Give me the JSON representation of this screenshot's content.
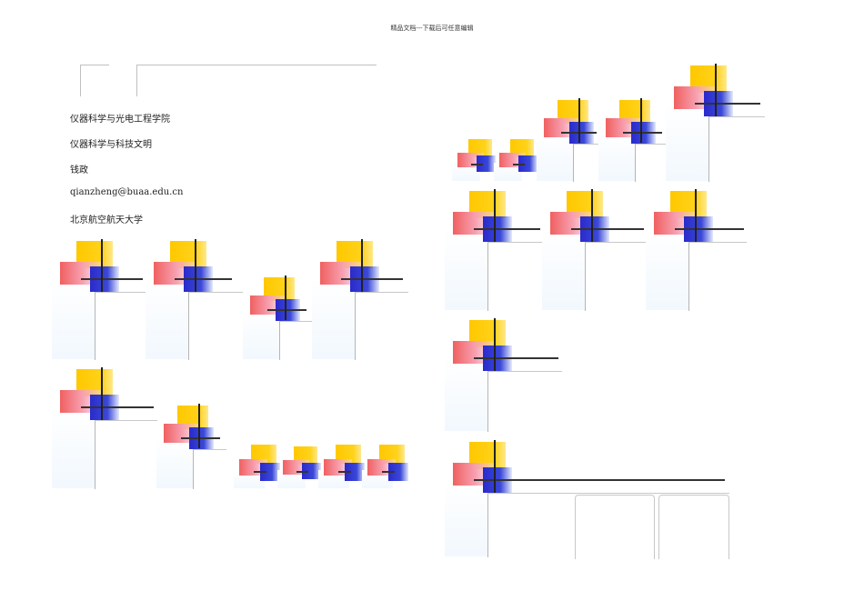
{
  "header": {
    "note": "精品文档---下载后可任意编辑"
  },
  "info_lines": [
    "仪器科学与光电工程学院",
    "仪器科学与科技文明",
    "钱政",
    "qianzheng@buaa.edu.cn",
    "北京航空航天大学"
  ],
  "colors": {
    "yellow": "#ffc800",
    "red": "#f06060",
    "blue": "#2a2acb",
    "line": "#222222"
  }
}
